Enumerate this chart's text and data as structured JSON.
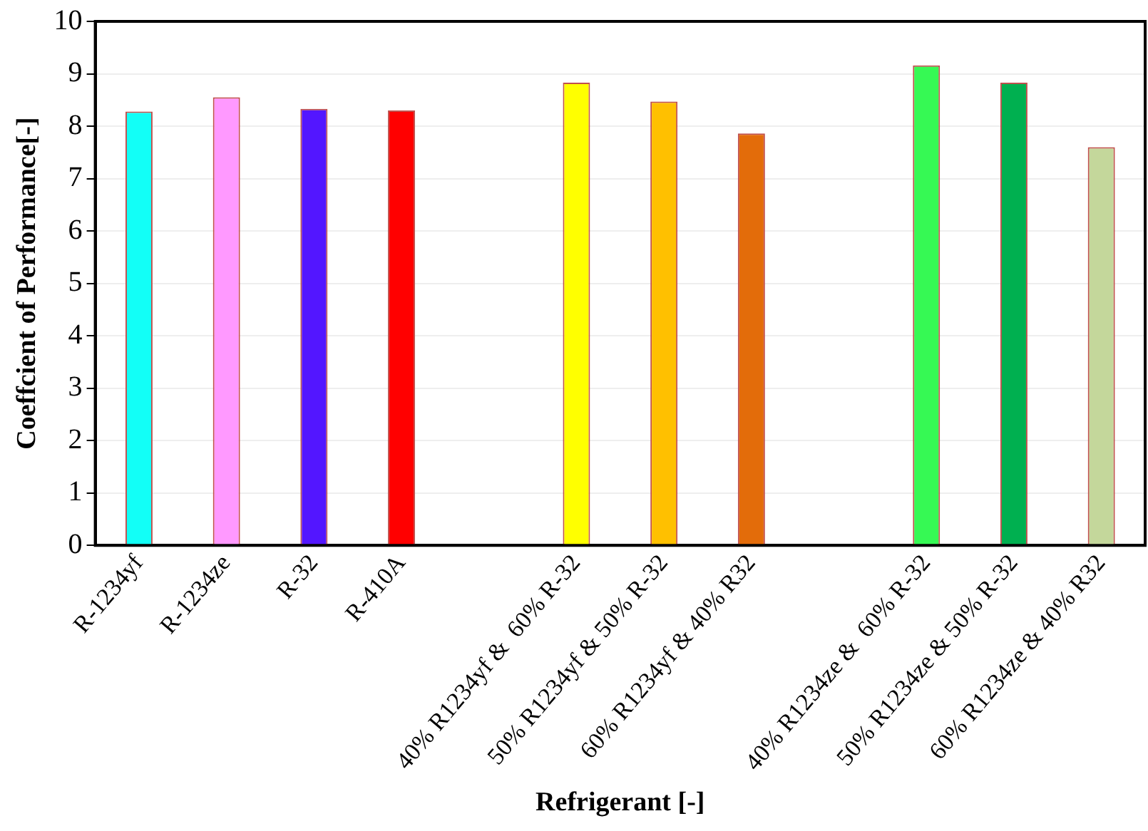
{
  "chart_data": {
    "type": "bar",
    "xlabel": "Refrigerant [-]",
    "ylabel": "Coeffcient of Performance[-]",
    "categories": [
      "R-1234yf",
      "R-1234ze",
      "R-32",
      "R-410A",
      null,
      "40% R1234yf &  60% R-32",
      "50% R1234yf & 50% R-32",
      "60% R1234yf & 40% R32",
      null,
      "40% R1234ze &  60% R-32",
      "50% R1234ze & 50% R-32",
      "60% R1234ze & 40% R32"
    ],
    "values": [
      8.28,
      8.55,
      8.33,
      8.3,
      null,
      8.83,
      8.47,
      7.86,
      null,
      9.16,
      8.83,
      7.6
    ],
    "colors": [
      "#12fff7",
      "#ff99ff",
      "#5316ff",
      "#ff0000",
      "#ffffff",
      "#ffff00",
      "#ffc000",
      "#e36c0a",
      "#ffffff",
      "#36f954",
      "#00b050",
      "#c4d79b"
    ],
    "ylim": [
      0,
      10
    ],
    "yticks": [
      0,
      1,
      2,
      3,
      4,
      5,
      6,
      7,
      8,
      9,
      10
    ],
    "grid": "y",
    "legend": false
  }
}
